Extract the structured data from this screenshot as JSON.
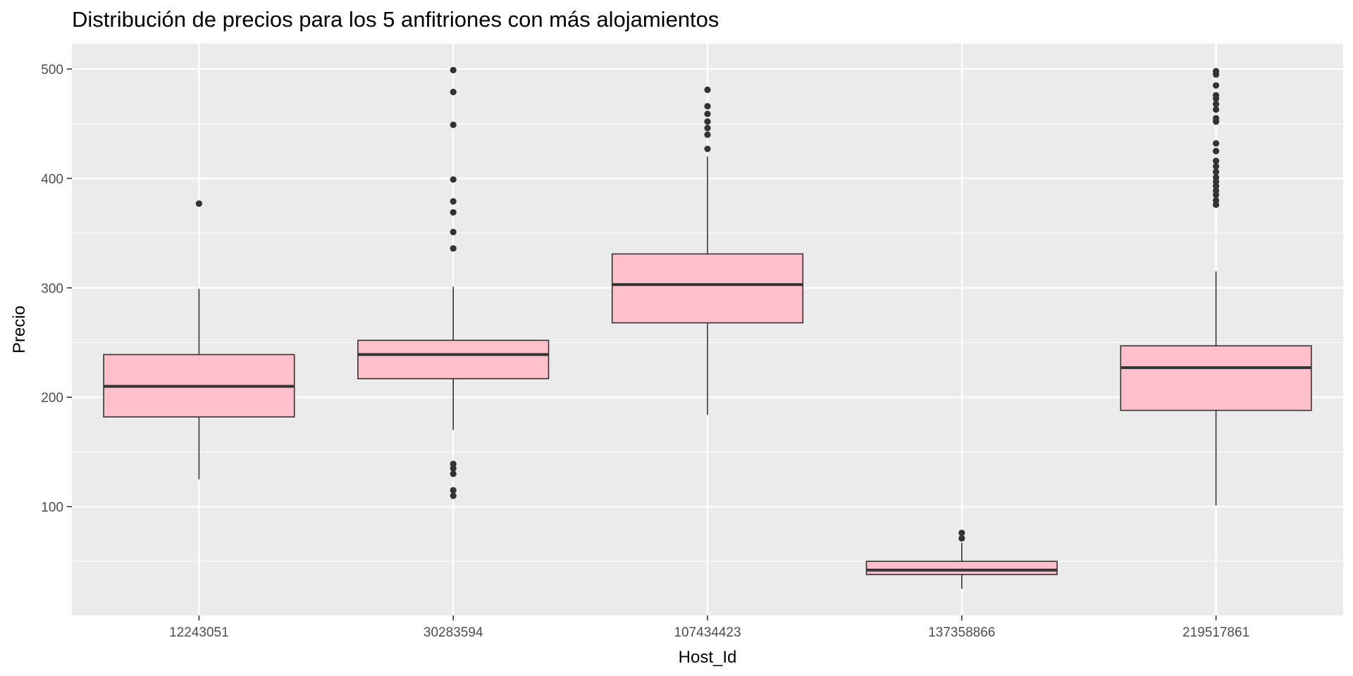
{
  "chart_data": {
    "type": "boxplot",
    "title": "Distribución de precios para los 5 anfitriones con más alojamientos",
    "xlabel": "Host_Id",
    "ylabel": "Precio",
    "ylim": [
      0,
      500
    ],
    "yticks": [
      100,
      200,
      300,
      400,
      500
    ],
    "grid": true,
    "box_fill": "#FFC0CB",
    "panel_background": "#EBEBEB",
    "categories": [
      "12243051",
      "30283594",
      "107434423",
      "137358866",
      "219517861"
    ],
    "boxes": [
      {
        "category": "12243051",
        "whisker_low": 125,
        "q1": 182,
        "median": 210,
        "q3": 239,
        "whisker_high": 299,
        "outliers": [
          377
        ]
      },
      {
        "category": "30283594",
        "whisker_low": 170,
        "q1": 217,
        "median": 239,
        "q3": 252,
        "whisker_high": 301,
        "outliers": [
          110,
          115,
          130,
          135,
          139,
          336,
          351,
          369,
          379,
          399,
          449,
          479,
          499
        ]
      },
      {
        "category": "107434423",
        "whisker_low": 184,
        "q1": 268,
        "median": 303,
        "q3": 331,
        "whisker_high": 420,
        "outliers": [
          427,
          440,
          446,
          452,
          459,
          466,
          481
        ]
      },
      {
        "category": "137358866",
        "whisker_low": 25,
        "q1": 38,
        "median": 42,
        "q3": 50,
        "whisker_high": 67,
        "outliers": [
          71,
          76
        ]
      },
      {
        "category": "219517861",
        "whisker_low": 101,
        "q1": 188,
        "median": 227,
        "q3": 247,
        "whisker_high": 315,
        "outliers": [
          376,
          380,
          385,
          389,
          393,
          397,
          401,
          406,
          411,
          416,
          425,
          432,
          452,
          455,
          463,
          468,
          473,
          476,
          485,
          495,
          498
        ]
      }
    ]
  }
}
